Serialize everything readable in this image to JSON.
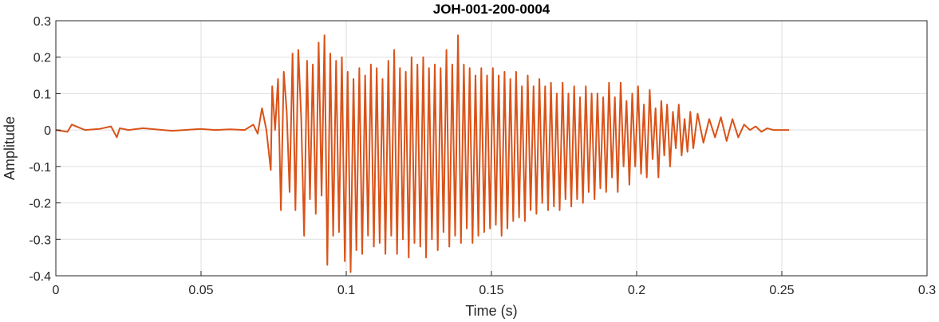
{
  "chart_data": {
    "type": "line",
    "title": "JOH-001-200-0004",
    "xlabel": "Time (s)",
    "ylabel": "Amplitude",
    "xlim": [
      0,
      0.3
    ],
    "ylim": [
      -0.4,
      0.3
    ],
    "x_ticks": [
      "0",
      "0.05",
      "0.1",
      "0.15",
      "0.2",
      "0.25",
      "0.3"
    ],
    "y_ticks": [
      "-0.4",
      "-0.3",
      "-0.2",
      "-0.1",
      "0",
      "0.1",
      "0.2",
      "0.3"
    ],
    "grid": true,
    "series": [
      {
        "color": "#d95319",
        "description_points": {
          "x": [
            0.0,
            0.004,
            0.0055,
            0.007,
            0.01,
            0.015,
            0.019,
            0.021,
            0.022,
            0.025,
            0.03,
            0.04,
            0.05,
            0.055,
            0.06,
            0.065,
            0.068,
            0.0695,
            0.071,
            0.0725,
            0.074,
            0.0745,
            0.0755,
            0.0765,
            0.0775,
            0.0785,
            0.0795,
            0.0805,
            0.0815,
            0.0825,
            0.0835,
            0.0845,
            0.0855,
            0.0865,
            0.0875,
            0.0885,
            0.0895,
            0.0905,
            0.0915,
            0.0925,
            0.0935,
            0.0945,
            0.0955,
            0.0965,
            0.0975,
            0.0985,
            0.0995,
            0.1005,
            0.1015,
            0.1025,
            0.1035,
            0.1045,
            0.1055,
            0.1065,
            0.1075,
            0.1085,
            0.1095,
            0.1105,
            0.1115,
            0.1125,
            0.1135,
            0.1145,
            0.1155,
            0.1165,
            0.1175,
            0.1185,
            0.1195,
            0.1205,
            0.1215,
            0.1225,
            0.1235,
            0.1245,
            0.1255,
            0.1265,
            0.1275,
            0.1285,
            0.1295,
            0.1305,
            0.1315,
            0.1325,
            0.1335,
            0.1345,
            0.1355,
            0.1365,
            0.1375,
            0.1385,
            0.1395,
            0.1405,
            0.1415,
            0.1425,
            0.1435,
            0.1445,
            0.1455,
            0.1465,
            0.1475,
            0.1485,
            0.1495,
            0.1505,
            0.1515,
            0.1525,
            0.1535,
            0.1545,
            0.1555,
            0.1565,
            0.1575,
            0.1585,
            0.1595,
            0.1605,
            0.1615,
            0.1625,
            0.1635,
            0.1645,
            0.1655,
            0.1665,
            0.1675,
            0.1685,
            0.1695,
            0.1705,
            0.1715,
            0.1725,
            0.1735,
            0.1745,
            0.1755,
            0.1765,
            0.1775,
            0.1785,
            0.1795,
            0.1805,
            0.1815,
            0.1825,
            0.1835,
            0.1845,
            0.1855,
            0.1865,
            0.1875,
            0.1885,
            0.1895,
            0.1905,
            0.1915,
            0.1925,
            0.1935,
            0.1945,
            0.1955,
            0.1965,
            0.1975,
            0.1985,
            0.1995,
            0.2005,
            0.2015,
            0.2025,
            0.2035,
            0.2045,
            0.2055,
            0.2065,
            0.2075,
            0.2085,
            0.2095,
            0.2105,
            0.2115,
            0.2125,
            0.2135,
            0.2145,
            0.2155,
            0.2165,
            0.2175,
            0.2185,
            0.2195,
            0.221,
            0.223,
            0.225,
            0.227,
            0.229,
            0.231,
            0.233,
            0.235,
            0.237,
            0.239,
            0.241,
            0.243,
            0.245,
            0.247,
            0.249,
            0.251,
            0.2525
          ],
          "y": [
            0.0,
            -0.005,
            0.015,
            0.01,
            0.0,
            0.003,
            0.01,
            -0.02,
            0.005,
            0.0,
            0.005,
            -0.002,
            0.003,
            0.0,
            0.002,
            0.0,
            0.015,
            -0.01,
            0.06,
            0.0,
            -0.11,
            0.12,
            0.0,
            0.14,
            -0.22,
            0.16,
            0.05,
            -0.17,
            0.21,
            -0.22,
            0.22,
            0.03,
            -0.29,
            0.19,
            -0.19,
            0.18,
            -0.23,
            0.24,
            -0.18,
            0.26,
            -0.37,
            0.21,
            -0.29,
            0.19,
            -0.28,
            0.2,
            -0.36,
            0.16,
            -0.39,
            0.14,
            -0.33,
            0.17,
            -0.34,
            0.15,
            -0.29,
            0.18,
            -0.32,
            0.17,
            -0.31,
            0.14,
            -0.34,
            0.19,
            -0.29,
            0.22,
            -0.34,
            0.17,
            -0.3,
            0.16,
            -0.35,
            0.2,
            -0.31,
            0.18,
            -0.32,
            0.2,
            -0.35,
            0.17,
            -0.3,
            0.18,
            -0.33,
            0.17,
            -0.28,
            0.22,
            -0.32,
            0.18,
            -0.29,
            0.26,
            -0.31,
            0.18,
            -0.27,
            0.17,
            -0.31,
            0.15,
            -0.29,
            0.17,
            -0.28,
            0.15,
            -0.27,
            0.17,
            -0.26,
            0.15,
            -0.29,
            0.16,
            -0.27,
            0.14,
            -0.25,
            0.16,
            -0.24,
            0.12,
            -0.25,
            0.15,
            -0.22,
            0.12,
            -0.23,
            0.14,
            -0.2,
            0.12,
            -0.22,
            0.13,
            -0.21,
            0.1,
            -0.22,
            0.13,
            -0.19,
            0.1,
            -0.21,
            0.12,
            -0.19,
            0.09,
            -0.2,
            0.12,
            -0.17,
            0.1,
            -0.19,
            0.1,
            -0.16,
            0.09,
            -0.17,
            0.13,
            -0.13,
            0.09,
            -0.17,
            0.13,
            -0.1,
            0.08,
            -0.15,
            0.1,
            -0.1,
            0.12,
            -0.12,
            0.07,
            -0.13,
            0.11,
            -0.08,
            0.06,
            -0.13,
            0.08,
            -0.07,
            0.07,
            -0.1,
            0.05,
            -0.05,
            0.07,
            -0.07,
            0.03,
            -0.06,
            0.05,
            -0.05,
            0.045,
            -0.035,
            0.03,
            -0.02,
            0.035,
            -0.03,
            0.03,
            -0.02,
            0.015,
            0.0,
            0.01,
            -0.005,
            0.005,
            0.0,
            0.0,
            0.0,
            0.0
          ]
        }
      }
    ]
  }
}
